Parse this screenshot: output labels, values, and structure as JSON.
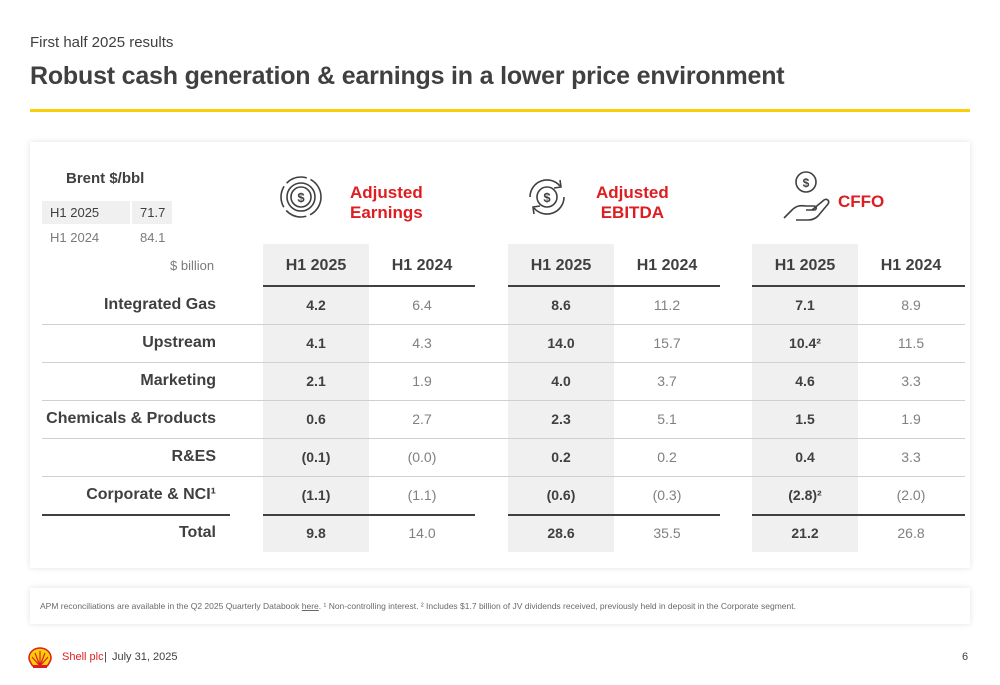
{
  "header": {
    "subtitle": "First half 2025 results",
    "title": "Robust cash generation & earnings in a lower price environment"
  },
  "colors": {
    "accent_yellow": "#fbce07",
    "brand_red": "#dd1d21",
    "shade": "#f0f0f0",
    "text": "#404040"
  },
  "brent": {
    "title": "Brent $/bbl",
    "rows": [
      {
        "label": "H1 2025",
        "value": "71.7"
      },
      {
        "label": "H1 2024",
        "value": "84.1"
      }
    ]
  },
  "unit": "$  billion",
  "metrics": [
    {
      "label": "Adjusted\nEarnings",
      "icon": "coin-cycle-icon"
    },
    {
      "label": "Adjusted\nEBITDA",
      "icon": "dollar-arrows-icon"
    },
    {
      "label": "CFFO",
      "icon": "hand-coin-icon"
    }
  ],
  "column_headers": [
    "H1 2025",
    "H1 2024",
    "H1 2025",
    "H1 2024",
    "H1 2025",
    "H1 2024"
  ],
  "rows": [
    {
      "label": "Integrated Gas",
      "values": [
        "4.2",
        "6.4",
        "8.6",
        "11.2",
        "7.1",
        "8.9"
      ]
    },
    {
      "label": "Upstream",
      "values": [
        "4.1",
        "4.3",
        "14.0",
        "15.7",
        "10.4²",
        "11.5"
      ]
    },
    {
      "label": "Marketing",
      "values": [
        "2.1",
        "1.9",
        "4.0",
        "3.7",
        "4.6",
        "3.3"
      ]
    },
    {
      "label": "Chemicals & Products",
      "values": [
        "0.6",
        "2.7",
        "2.3",
        "5.1",
        "1.5",
        "1.9"
      ]
    },
    {
      "label": "R&ES",
      "values": [
        "(0.1)",
        "(0.0)",
        "0.2",
        "0.2",
        "0.4",
        "3.3"
      ]
    },
    {
      "label": "Corporate & NCI¹",
      "values": [
        "(1.1)",
        "(1.1)",
        "(0.6)",
        "(0.3)",
        "(2.8)²",
        "(2.0)"
      ]
    },
    {
      "label": "Total",
      "values": [
        "9.8",
        "14.0",
        "28.6",
        "35.5",
        "21.2",
        "26.8"
      ]
    }
  ],
  "footnote": {
    "pre": "APM reconciliations are available in the Q2 2025 Quarterly Databook ",
    "link": "here",
    "post": ". ¹ Non-controlling interest. ² Includes $1.7 billion of JV dividends received, previously held in deposit in the Corporate segment."
  },
  "footer": {
    "brand": "Shell plc",
    "separator": "|",
    "date": "July 31, 2025",
    "page": "6"
  }
}
